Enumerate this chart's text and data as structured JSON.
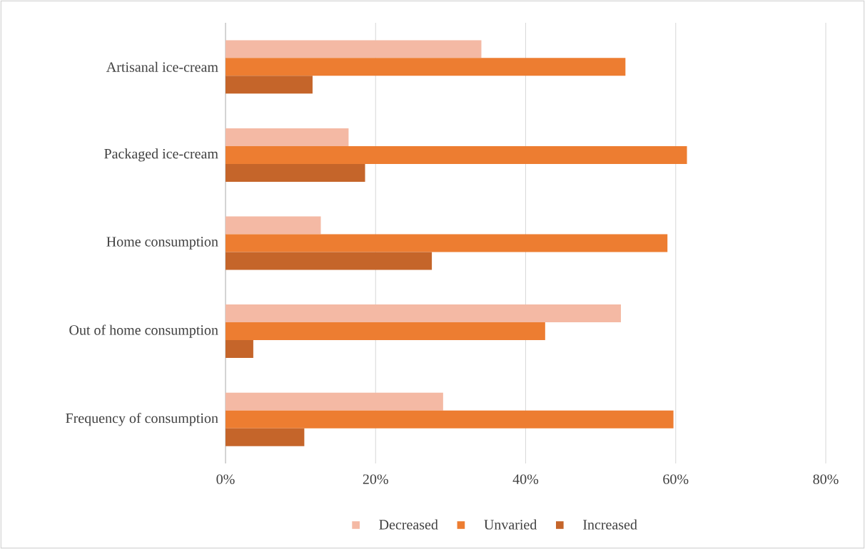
{
  "chart_data": {
    "type": "bar",
    "orientation": "horizontal",
    "categories": [
      "Artisanal ice-cream",
      "Packaged ice-cream",
      "Home consumption",
      "Out of home consumption",
      "Frequency of consumption"
    ],
    "series": [
      {
        "name": "Decreased",
        "color": "#f4b9a4",
        "values": [
          34.1,
          16.4,
          12.7,
          52.7,
          29.0
        ]
      },
      {
        "name": "Unvaried",
        "color": "#ed7d31",
        "values": [
          53.3,
          61.5,
          58.9,
          42.6,
          59.7
        ]
      },
      {
        "name": "Increased",
        "color": "#c5652a",
        "values": [
          11.6,
          18.6,
          27.5,
          3.7,
          10.5
        ]
      }
    ],
    "xlim": [
      0,
      80
    ],
    "xticks": [
      {
        "value": 0,
        "label": "0%"
      },
      {
        "value": 20,
        "label": "20%"
      },
      {
        "value": 40,
        "label": "40%"
      },
      {
        "value": 60,
        "label": "60%"
      },
      {
        "value": 80,
        "label": "80%"
      }
    ],
    "grid": "x",
    "legend": "bottom"
  }
}
